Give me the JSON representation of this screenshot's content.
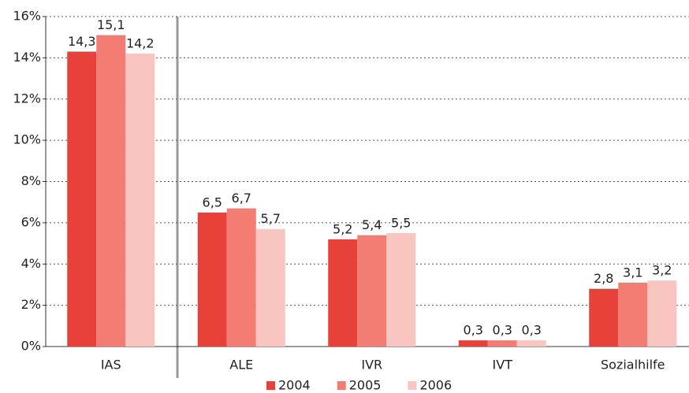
{
  "chart_data": {
    "type": "bar",
    "categories": [
      "IAS",
      "ALE",
      "IVR",
      "IVT",
      "Sozialhilfe"
    ],
    "series": [
      {
        "name": "2004",
        "color": "#e8413a",
        "values": [
          14.3,
          6.5,
          5.2,
          0.3,
          2.8
        ],
        "value_labels": [
          "14,3",
          "6,5",
          "5,2",
          "0,3",
          "2,8"
        ]
      },
      {
        "name": "2005",
        "color": "#f37d73",
        "values": [
          15.1,
          6.7,
          5.4,
          0.3,
          3.1
        ],
        "value_labels": [
          "15,1",
          "6,7",
          "5,4",
          "0,3",
          "3,1"
        ]
      },
      {
        "name": "2006",
        "color": "#f8c5c0",
        "values": [
          14.2,
          5.7,
          5.5,
          0.3,
          3.2
        ],
        "value_labels": [
          "14,2",
          "5,7",
          "5,5",
          "0,3",
          "3,2"
        ]
      }
    ],
    "ylim": [
      0,
      16
    ],
    "yticks": [
      {
        "value": 0,
        "label": "0%"
      },
      {
        "value": 2,
        "label": "2%"
      },
      {
        "value": 4,
        "label": "4%"
      },
      {
        "value": 6,
        "label": "6%"
      },
      {
        "value": 8,
        "label": "8%"
      },
      {
        "value": 10,
        "label": "10%"
      },
      {
        "value": 12,
        "label": "12%"
      },
      {
        "value": 14,
        "label": "14%"
      },
      {
        "value": 16,
        "label": "16%"
      }
    ],
    "grid": true,
    "legend": "bottom"
  }
}
